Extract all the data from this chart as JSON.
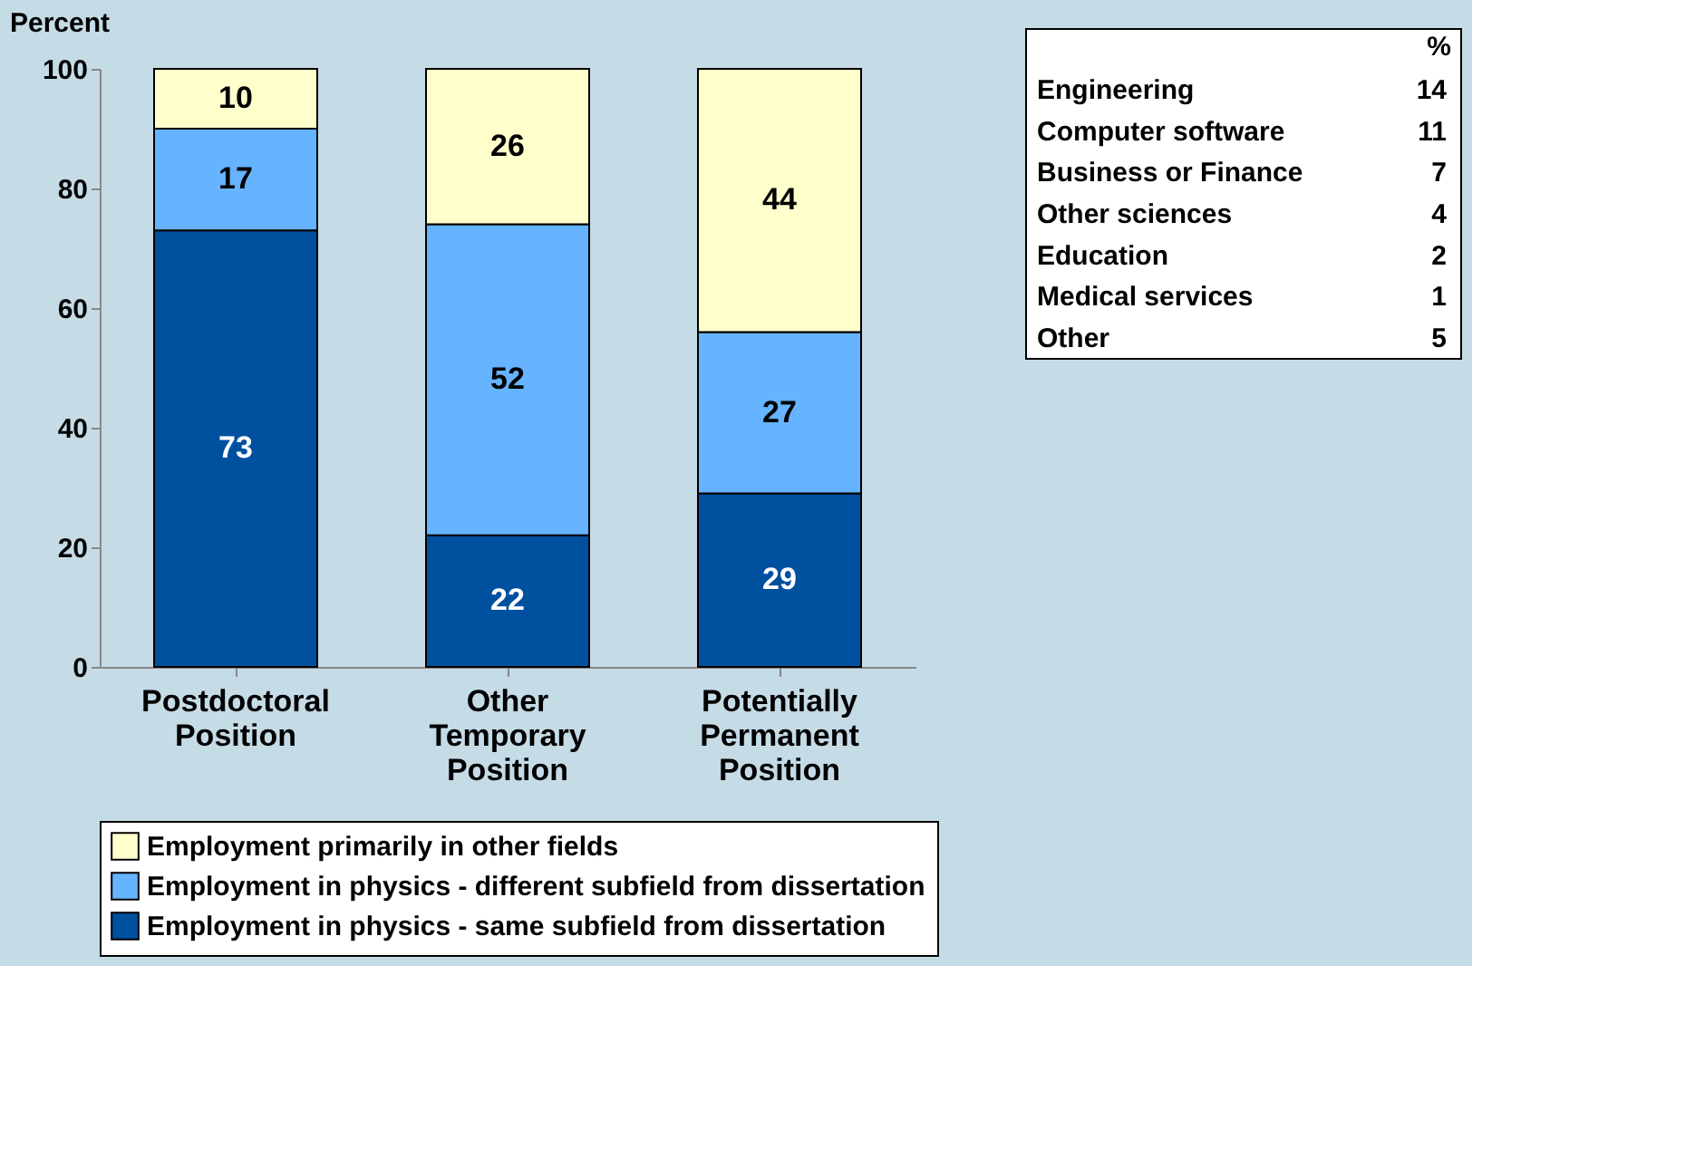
{
  "chart_data": [
    {
      "type": "bar",
      "stacked": true,
      "ylabel": "Percent",
      "categories": [
        "Postdoctoral Position",
        "Other Temporary Position",
        "Potentially Permanent Position"
      ],
      "series": [
        {
          "name": "Employment in physics - same subfield from dissertation",
          "color": "#0050a0",
          "values": [
            73,
            22,
            29
          ]
        },
        {
          "name": "Employment in physics - different subfield from dissertation",
          "color": "#66b3ff",
          "values": [
            17,
            52,
            27
          ]
        },
        {
          "name": "Employment primarily in other fields",
          "color": "#ffffcc",
          "values": [
            10,
            26,
            44
          ]
        }
      ],
      "ylim": [
        0,
        100
      ],
      "yticks": [
        0,
        20,
        40,
        60,
        80,
        100
      ],
      "legend": "bottom",
      "data_labels": true
    },
    {
      "type": "other",
      "title": "%",
      "categories": [
        "Engineering",
        "Computer software",
        "Business or Finance",
        "Other sciences",
        "Education",
        "Medical services",
        "Other"
      ],
      "values": [
        14,
        11,
        7,
        4,
        2,
        1,
        5
      ],
      "data_labels": true
    }
  ]
}
